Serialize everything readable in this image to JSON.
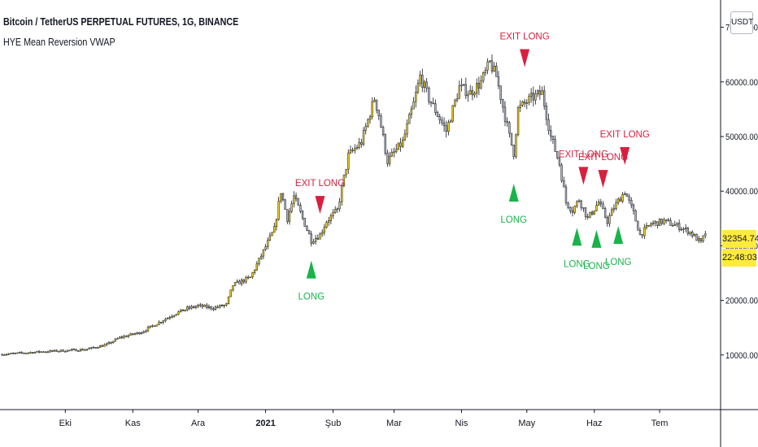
{
  "header": {
    "title": "Bitcoin / TetherUS PERPETUAL FUTURES, 1G, BINANCE",
    "indicator": "HYE Mean Reversion VWAP"
  },
  "currency_button": "USDT",
  "last_price": "32354.74",
  "countdown": "22:48:03",
  "chart_data": {
    "type": "candlestick",
    "title": "Bitcoin / TetherUS PERPETUAL FUTURES, 1G, BINANCE",
    "ylim": [
      0,
      75000
    ],
    "y_ticks": [
      {
        "value": 10000,
        "label": "10000.00"
      },
      {
        "value": 20000,
        "label": "20000.00"
      },
      {
        "value": 30000,
        "label": "30000.00"
      },
      {
        "value": 40000,
        "label": "40000.00"
      },
      {
        "value": 50000,
        "label": "50000.00"
      },
      {
        "value": 60000,
        "label": "60000.00"
      },
      {
        "value": 70000,
        "label": "70000.00"
      }
    ],
    "x_ticks": [
      {
        "label": "Eki",
        "date": "2020-10-01"
      },
      {
        "label": "Kas",
        "date": "2020-11-01"
      },
      {
        "label": "Ara",
        "date": "2020-12-01"
      },
      {
        "label": "2021",
        "date": "2021-01-01",
        "bold": true
      },
      {
        "label": "Şub",
        "date": "2021-02-01"
      },
      {
        "label": "Mar",
        "date": "2021-03-01"
      },
      {
        "label": "Nis",
        "date": "2021-04-01"
      },
      {
        "label": "May",
        "date": "2021-05-01"
      },
      {
        "label": "Haz",
        "date": "2021-06-01"
      },
      {
        "label": "Tem",
        "date": "2021-07-01"
      }
    ],
    "x_range": [
      "2020-09-01",
      "2021-07-29"
    ],
    "price_path": [
      [
        "2020-09-01",
        10100
      ],
      [
        "2020-09-20",
        10600
      ],
      [
        "2020-10-10",
        11000
      ],
      [
        "2020-10-20",
        11900
      ],
      [
        "2020-10-26",
        13200
      ],
      [
        "2020-11-05",
        14200
      ],
      [
        "2020-11-10",
        15300
      ],
      [
        "2020-11-20",
        17500
      ],
      [
        "2020-11-26",
        18500
      ],
      [
        "2020-12-01",
        19000
      ],
      [
        "2020-12-08",
        18600
      ],
      [
        "2020-12-14",
        19200
      ],
      [
        "2020-12-17",
        22800
      ],
      [
        "2020-12-25",
        24200
      ],
      [
        "2020-12-31",
        29000
      ],
      [
        "2021-01-05",
        33000
      ],
      [
        "2021-01-08",
        40000
      ],
      [
        "2021-01-11",
        35000
      ],
      [
        "2021-01-14",
        39000
      ],
      [
        "2021-01-22",
        31000
      ],
      [
        "2021-01-26",
        32000
      ],
      [
        "2021-01-29",
        34500
      ],
      [
        "2021-02-03",
        36500
      ],
      [
        "2021-02-08",
        46500
      ],
      [
        "2021-02-14",
        49000
      ],
      [
        "2021-02-20",
        57000
      ],
      [
        "2021-02-22",
        54000
      ],
      [
        "2021-02-26",
        45500
      ],
      [
        "2021-03-05",
        49000
      ],
      [
        "2021-03-10",
        56000
      ],
      [
        "2021-03-13",
        61000
      ],
      [
        "2021-03-17",
        57000
      ],
      [
        "2021-03-25",
        51000
      ],
      [
        "2021-03-31",
        59000
      ],
      [
        "2021-04-05",
        58000
      ],
      [
        "2021-04-10",
        60000
      ],
      [
        "2021-04-14",
        63500
      ],
      [
        "2021-04-17",
        61000
      ],
      [
        "2021-04-23",
        50000
      ],
      [
        "2021-04-25",
        47000
      ],
      [
        "2021-04-27",
        55000
      ],
      [
        "2021-05-03",
        57000
      ],
      [
        "2021-05-08",
        58000
      ],
      [
        "2021-05-12",
        50000
      ],
      [
        "2021-05-16",
        45000
      ],
      [
        "2021-05-19",
        38000
      ],
      [
        "2021-05-22",
        36500
      ],
      [
        "2021-05-25",
        38500
      ],
      [
        "2021-05-29",
        35000
      ],
      [
        "2021-06-03",
        38000
      ],
      [
        "2021-06-07",
        34500
      ],
      [
        "2021-06-10",
        37000
      ],
      [
        "2021-06-15",
        40000
      ],
      [
        "2021-06-19",
        36000
      ],
      [
        "2021-06-22",
        32000
      ],
      [
        "2021-06-27",
        34000
      ],
      [
        "2021-07-03",
        34500
      ],
      [
        "2021-07-10",
        33500
      ],
      [
        "2021-07-15",
        32500
      ],
      [
        "2021-07-20",
        30500
      ],
      [
        "2021-07-22",
        32354
      ]
    ],
    "signals": [
      {
        "type": "long",
        "date": "2021-01-22",
        "label": "LONG"
      },
      {
        "type": "exit",
        "date": "2021-01-26",
        "label": "EXIT LONG"
      },
      {
        "type": "long",
        "date": "2021-04-25",
        "label": "LONG"
      },
      {
        "type": "exit",
        "date": "2021-04-30",
        "label": "EXIT LONG"
      },
      {
        "type": "long",
        "date": "2021-05-24",
        "label": "LONG"
      },
      {
        "type": "exit",
        "date": "2021-05-27",
        "label": "EXIT LONG"
      },
      {
        "type": "long",
        "date": "2021-06-02",
        "label": "LONG"
      },
      {
        "type": "exit",
        "date": "2021-06-05",
        "label": "EXIT LONG"
      },
      {
        "type": "long",
        "date": "2021-06-12",
        "label": "LONG"
      },
      {
        "type": "exit",
        "date": "2021-06-15",
        "label": "EXIT LONG"
      }
    ],
    "colors": {
      "bull_body": "#f2d21b",
      "bear_body": "#b2b5be",
      "wick": "#131722",
      "long": "#19b34a",
      "exit": "#d81f3f",
      "axis_text": "#131722",
      "last_price_bg": "#ffeb3b"
    }
  }
}
